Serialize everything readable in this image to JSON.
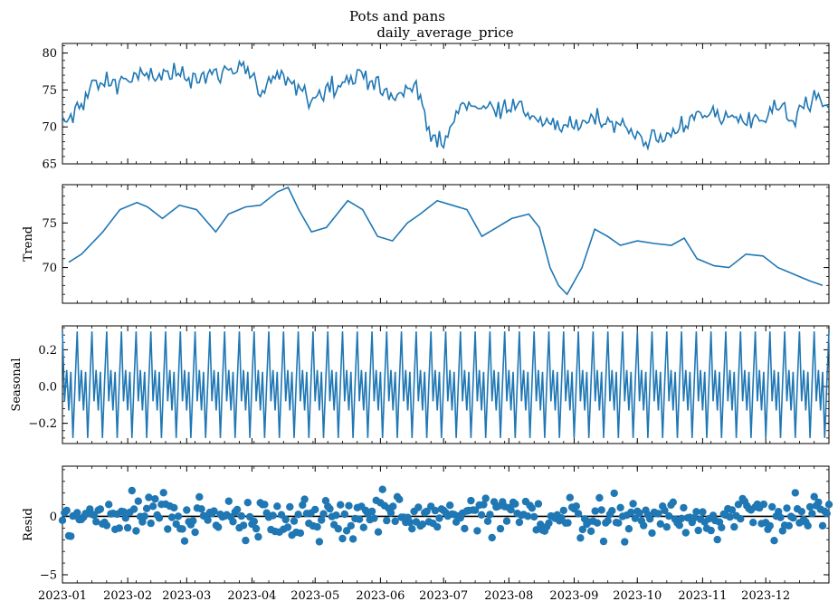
{
  "figure": {
    "title": "Pots and pans",
    "subtitle": "daily_average_price"
  },
  "colors": {
    "series": "#1f77b4",
    "zero_line": "#000000",
    "axis": "#000000"
  },
  "chart_data": [
    {
      "id": "observed",
      "type": "line",
      "ylabel": "",
      "ylim": [
        65,
        81.3
      ],
      "yticks": [
        65,
        70,
        75,
        80
      ],
      "ytick_labels": [
        "65",
        "70",
        "75",
        "80"
      ],
      "x": {
        "start": "2023-01-01",
        "end": "2023-12-31",
        "ticks": [
          "2023-01",
          "2023-02",
          "2023-03",
          "2023-04",
          "2023-05",
          "2023-06",
          "2023-07",
          "2023-08",
          "2023-09",
          "2023-10",
          "2023-11",
          "2023-12"
        ]
      },
      "profile": [
        [
          "2023-01-01",
          70
        ],
        [
          "2023-01-07",
          72
        ],
        [
          "2023-01-15",
          75.5
        ],
        [
          "2023-02-01",
          76.5
        ],
        [
          "2023-02-15",
          77
        ],
        [
          "2023-03-01",
          77
        ],
        [
          "2023-03-15",
          77
        ],
        [
          "2023-03-28",
          78.5
        ],
        [
          "2023-04-05",
          74.5
        ],
        [
          "2023-04-15",
          77
        ],
        [
          "2023-04-28",
          73.8
        ],
        [
          "2023-05-10",
          75.8
        ],
        [
          "2023-05-25",
          77.2
        ],
        [
          "2023-06-05",
          73.8
        ],
        [
          "2023-06-18",
          75.5
        ],
        [
          "2023-06-25",
          69
        ],
        [
          "2023-07-01",
          67.5
        ],
        [
          "2023-07-10",
          73.5
        ],
        [
          "2023-07-20",
          72.5
        ],
        [
          "2023-08-01",
          73
        ],
        [
          "2023-08-10",
          72
        ],
        [
          "2023-08-20",
          70
        ],
        [
          "2023-09-01",
          70
        ],
        [
          "2023-09-10",
          71.5
        ],
        [
          "2023-09-22",
          70.3
        ],
        [
          "2023-10-05",
          68.3
        ],
        [
          "2023-10-15",
          68.5
        ],
        [
          "2023-10-22",
          70.5
        ],
        [
          "2023-11-01",
          71.5
        ],
        [
          "2023-11-15",
          71.5
        ],
        [
          "2023-11-25",
          70.5
        ],
        [
          "2023-12-05",
          72.8
        ],
        [
          "2023-12-15",
          71
        ],
        [
          "2023-12-25",
          74.5
        ],
        [
          "2023-12-31",
          72
        ]
      ],
      "noise": 1.6
    },
    {
      "id": "trend",
      "type": "line",
      "ylabel": "Trend",
      "ylim": [
        66,
        79.3
      ],
      "yticks": [
        70,
        75
      ],
      "ytick_labels": [
        "70",
        "75"
      ],
      "profile": [
        [
          "2023-01-04",
          70.6
        ],
        [
          "2023-01-10",
          71.5
        ],
        [
          "2023-01-20",
          74
        ],
        [
          "2023-01-28",
          76.5
        ],
        [
          "2023-02-05",
          77.3
        ],
        [
          "2023-02-10",
          76.8
        ],
        [
          "2023-02-17",
          75.5
        ],
        [
          "2023-02-25",
          77
        ],
        [
          "2023-03-05",
          76.5
        ],
        [
          "2023-03-14",
          74
        ],
        [
          "2023-03-20",
          76
        ],
        [
          "2023-03-28",
          76.8
        ],
        [
          "2023-04-04",
          77
        ],
        [
          "2023-04-12",
          78.5
        ],
        [
          "2023-04-17",
          79
        ],
        [
          "2023-04-22",
          76.5
        ],
        [
          "2023-04-28",
          74
        ],
        [
          "2023-05-05",
          74.5
        ],
        [
          "2023-05-15",
          77.5
        ],
        [
          "2023-05-22",
          76.5
        ],
        [
          "2023-05-29",
          73.5
        ],
        [
          "2023-06-05",
          73
        ],
        [
          "2023-06-12",
          75
        ],
        [
          "2023-06-18",
          76
        ],
        [
          "2023-06-26",
          77.5
        ],
        [
          "2023-07-03",
          77
        ],
        [
          "2023-07-10",
          76.5
        ],
        [
          "2023-07-17",
          73.5
        ],
        [
          "2023-07-24",
          74.5
        ],
        [
          "2023-07-31",
          75.5
        ],
        [
          "2023-08-08",
          76
        ],
        [
          "2023-08-13",
          74.5
        ],
        [
          "2023-08-18",
          70
        ],
        [
          "2023-08-22",
          68
        ],
        [
          "2023-08-26",
          67
        ],
        [
          "2023-09-02",
          70
        ],
        [
          "2023-09-08",
          74.3
        ],
        [
          "2023-09-14",
          73.5
        ],
        [
          "2023-09-20",
          72.5
        ],
        [
          "2023-09-28",
          73
        ],
        [
          "2023-10-06",
          72.7
        ],
        [
          "2023-10-14",
          72.5
        ],
        [
          "2023-10-20",
          73.3
        ],
        [
          "2023-10-26",
          71
        ],
        [
          "2023-11-03",
          70.2
        ],
        [
          "2023-11-10",
          70
        ],
        [
          "2023-11-18",
          71.5
        ],
        [
          "2023-11-26",
          71.3
        ],
        [
          "2023-12-03",
          70
        ],
        [
          "2023-12-10",
          69.3
        ],
        [
          "2023-12-18",
          68.5
        ],
        [
          "2023-12-24",
          68
        ]
      ],
      "profile_note": ""
    },
    {
      "id": "seasonal",
      "type": "line",
      "ylabel": "Seasonal",
      "ylim": [
        -0.31,
        0.33
      ],
      "yticks": [
        -0.2,
        0.0,
        0.2
      ],
      "ytick_labels": [
        "−0.2",
        "0.0",
        "0.2"
      ],
      "weekly_pattern": [
        0.3,
        -0.08,
        0.09,
        -0.13,
        0.08,
        -0.28,
        0.02
      ]
    },
    {
      "id": "resid",
      "type": "scatter",
      "ylabel": "Resid",
      "ylim": [
        -5.7,
        4.3
      ],
      "yticks": [
        -5,
        0
      ],
      "ytick_labels": [
        "−5",
        "0"
      ],
      "zero_line": true,
      "spread": 1.6
    }
  ]
}
